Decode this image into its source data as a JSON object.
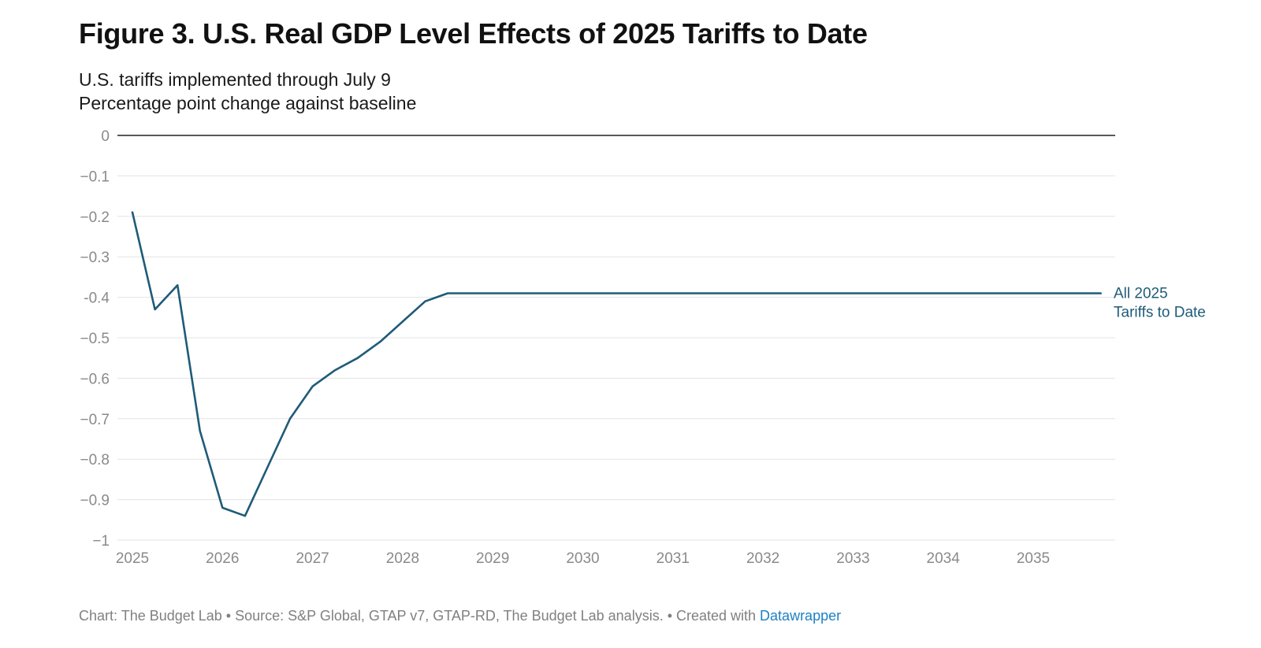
{
  "header": {
    "title": "Figure 3. U.S. Real GDP Level Effects of 2025 Tariffs to Date",
    "subtitle_line1": "U.S. tariffs implemented through July 9",
    "subtitle_line2": "Percentage point change against baseline"
  },
  "footer": {
    "text": "Chart: The Budget Lab • Source: S&P Global, GTAP v7, GTAP-RD, The Budget Lab analysis. • Created with ",
    "link_label": "Datawrapper",
    "link_color": "#1d81c4"
  },
  "chart_data": {
    "type": "line",
    "title": "Figure 3. U.S. Real GDP Level Effects of 2025 Tariffs to Date",
    "subtitle": "U.S. tariffs implemented through July 9 / Percentage point change against baseline",
    "xlabel": "",
    "ylabel": "",
    "xlim": [
      2025,
      2035.75
    ],
    "ylim": [
      -1,
      0
    ],
    "grid": true,
    "y_ticks": [
      {
        "value": 0,
        "label": "0"
      },
      {
        "value": -0.1,
        "label": "−0.1"
      },
      {
        "value": -0.2,
        "label": "−0.2"
      },
      {
        "value": -0.3,
        "label": "−0.3"
      },
      {
        "value": -0.4,
        "label": "-0.4"
      },
      {
        "value": -0.5,
        "label": "−0.5"
      },
      {
        "value": -0.6,
        "label": "−0.6"
      },
      {
        "value": -0.7,
        "label": "−0.7"
      },
      {
        "value": -0.8,
        "label": "−0.8"
      },
      {
        "value": -0.9,
        "label": "−0.9"
      },
      {
        "value": -1,
        "label": "−1"
      }
    ],
    "x_ticks": [
      2025,
      2026,
      2027,
      2028,
      2029,
      2030,
      2031,
      2032,
      2033,
      2034,
      2035
    ],
    "x_tick_labels": [
      "2025",
      "2026",
      "2027",
      "2028",
      "2029",
      "2030",
      "2031",
      "2032",
      "2033",
      "2034",
      "2035"
    ],
    "series": [
      {
        "name_line1": "All 2025",
        "name_line2": "Tariffs to Date",
        "color": "#1f5b78",
        "x": [
          2025,
          2025.25,
          2025.5,
          2025.75,
          2026,
          2026.25,
          2026.5,
          2026.75,
          2027,
          2027.25,
          2027.5,
          2027.75,
          2028,
          2028.25,
          2028.5,
          2028.75,
          2029,
          2030,
          2031,
          2032,
          2033,
          2034,
          2035,
          2035.75
        ],
        "values": [
          -0.19,
          -0.43,
          -0.37,
          -0.73,
          -0.92,
          -0.94,
          -0.82,
          -0.7,
          -0.62,
          -0.58,
          -0.55,
          -0.51,
          -0.46,
          -0.41,
          -0.39,
          -0.39,
          -0.39,
          -0.39,
          -0.39,
          -0.39,
          -0.39,
          -0.39,
          -0.39,
          -0.39
        ]
      }
    ]
  }
}
